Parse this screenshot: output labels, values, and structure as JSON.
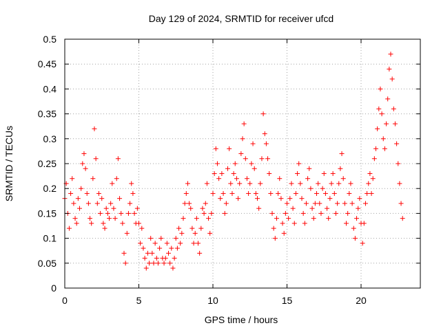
{
  "chart_data": {
    "type": "scatter",
    "title": "Day 129 of 2024, SRMTID for receiver ufcd",
    "xlabel": "GPS time / hours",
    "ylabel": "SRMTID / TECUs",
    "xlim": [
      0,
      24
    ],
    "ylim": [
      0,
      0.5
    ],
    "xticks": [
      0,
      5,
      10,
      15,
      20
    ],
    "yticks": [
      0,
      0.05,
      0.1,
      0.15,
      0.2,
      0.25,
      0.3,
      0.35,
      0.4,
      0.45,
      0.5
    ],
    "xtick_labels": [
      "0",
      "5",
      "10",
      "15",
      "20"
    ],
    "ytick_labels": [
      "0",
      "0.05",
      "0.1",
      "0.15",
      "0.2",
      "0.25",
      "0.3",
      "0.35",
      "0.4",
      "0.45",
      "0.5"
    ],
    "grid": true,
    "marker": "+",
    "color": "#ff0000",
    "series": [
      {
        "x": [
          0.0,
          0.1,
          0.2,
          0.3,
          0.4,
          0.5,
          0.6,
          0.7,
          0.8,
          0.9,
          1.0,
          1.1,
          1.2,
          1.3,
          1.4,
          1.5,
          1.6,
          1.7,
          1.8,
          1.9,
          2.0,
          2.1,
          2.2,
          2.3,
          2.4,
          2.5,
          2.6,
          2.7,
          2.8,
          2.9,
          3.0,
          3.1,
          3.2,
          3.3,
          3.4,
          3.5,
          3.6,
          3.7,
          3.8,
          3.9,
          4.0,
          4.1,
          4.2,
          4.3,
          4.4,
          4.5,
          4.6,
          4.7,
          4.8,
          4.9,
          5.0,
          5.1,
          5.2,
          5.3,
          5.4,
          5.5,
          5.6,
          5.7,
          5.8,
          5.9,
          6.0,
          6.1,
          6.2,
          6.3,
          6.4,
          6.5,
          6.6,
          6.7,
          6.8,
          6.9,
          7.0,
          7.1,
          7.2,
          7.3,
          7.4,
          7.5,
          7.6,
          7.7,
          7.8,
          7.9,
          8.0,
          8.1,
          8.2,
          8.3,
          8.4,
          8.5,
          8.6,
          8.7,
          8.8,
          8.9,
          9.0,
          9.1,
          9.2,
          9.3,
          9.4,
          9.5,
          9.6,
          9.7,
          9.8,
          9.9,
          10.0,
          10.1,
          10.2,
          10.3,
          10.4,
          10.5,
          10.6,
          10.7,
          10.8,
          10.9,
          11.0,
          11.1,
          11.2,
          11.3,
          11.4,
          11.5,
          11.6,
          11.7,
          11.8,
          11.9,
          12.0,
          12.1,
          12.2,
          12.3,
          12.4,
          12.5,
          12.6,
          12.7,
          12.8,
          12.9,
          13.0,
          13.1,
          13.2,
          13.3,
          13.4,
          13.5,
          13.6,
          13.7,
          13.8,
          13.9,
          14.0,
          14.1,
          14.2,
          14.3,
          14.4,
          14.5,
          14.6,
          14.7,
          14.8,
          14.9,
          15.0,
          15.1,
          15.2,
          15.3,
          15.4,
          15.5,
          15.6,
          15.7,
          15.8,
          15.9,
          16.0,
          16.1,
          16.2,
          16.3,
          16.4,
          16.5,
          16.6,
          16.7,
          16.8,
          16.9,
          17.0,
          17.1,
          17.2,
          17.3,
          17.4,
          17.5,
          17.6,
          17.7,
          17.8,
          17.9,
          18.0,
          18.1,
          18.2,
          18.3,
          18.4,
          18.5,
          18.6,
          18.7,
          18.8,
          18.9,
          19.0,
          19.1,
          19.2,
          19.3,
          19.4,
          19.5,
          19.6,
          19.7,
          19.8,
          19.9,
          20.0,
          20.1,
          20.2,
          20.3,
          20.4,
          20.5,
          20.6,
          20.7,
          20.8,
          20.9,
          21.0,
          21.1,
          21.2,
          21.3,
          21.4,
          21.5,
          21.6,
          21.7,
          21.8,
          21.9,
          22.0,
          22.1,
          22.2,
          22.3,
          22.4,
          22.5,
          22.6,
          22.7,
          22.8
        ],
        "y": [
          0.18,
          0.21,
          0.15,
          0.12,
          0.19,
          0.22,
          0.17,
          0.14,
          0.13,
          0.18,
          0.16,
          0.2,
          0.25,
          0.27,
          0.24,
          0.19,
          0.17,
          0.14,
          0.13,
          0.22,
          0.32,
          0.26,
          0.17,
          0.19,
          0.15,
          0.18,
          0.13,
          0.12,
          0.16,
          0.15,
          0.14,
          0.17,
          0.21,
          0.16,
          0.14,
          0.22,
          0.26,
          0.18,
          0.15,
          0.13,
          0.07,
          0.05,
          0.11,
          0.15,
          0.17,
          0.21,
          0.19,
          0.15,
          0.13,
          0.16,
          0.13,
          0.09,
          0.12,
          0.08,
          0.06,
          0.04,
          0.07,
          0.05,
          0.1,
          0.07,
          0.05,
          0.09,
          0.06,
          0.05,
          0.08,
          0.1,
          0.06,
          0.05,
          0.06,
          0.09,
          0.07,
          0.05,
          0.08,
          0.04,
          0.06,
          0.1,
          0.08,
          0.12,
          0.09,
          0.11,
          0.14,
          0.17,
          0.19,
          0.21,
          0.17,
          0.16,
          0.12,
          0.09,
          0.11,
          0.14,
          0.09,
          0.07,
          0.12,
          0.16,
          0.15,
          0.17,
          0.21,
          0.14,
          0.11,
          0.15,
          0.19,
          0.23,
          0.28,
          0.25,
          0.22,
          0.18,
          0.23,
          0.19,
          0.15,
          0.17,
          0.24,
          0.28,
          0.21,
          0.19,
          0.23,
          0.25,
          0.22,
          0.18,
          0.21,
          0.27,
          0.3,
          0.33,
          0.26,
          0.22,
          0.19,
          0.21,
          0.25,
          0.29,
          0.24,
          0.19,
          0.18,
          0.16,
          0.21,
          0.26,
          0.35,
          0.31,
          0.29,
          0.26,
          0.23,
          0.19,
          0.15,
          0.12,
          0.1,
          0.14,
          0.19,
          0.22,
          0.18,
          0.13,
          0.11,
          0.15,
          0.17,
          0.14,
          0.18,
          0.21,
          0.16,
          0.13,
          0.19,
          0.23,
          0.25,
          0.21,
          0.18,
          0.15,
          0.13,
          0.17,
          0.22,
          0.24,
          0.2,
          0.16,
          0.14,
          0.17,
          0.19,
          0.21,
          0.17,
          0.15,
          0.2,
          0.23,
          0.19,
          0.16,
          0.14,
          0.18,
          0.21,
          0.23,
          0.19,
          0.15,
          0.17,
          0.21,
          0.24,
          0.27,
          0.22,
          0.17,
          0.13,
          0.15,
          0.19,
          0.21,
          0.17,
          0.12,
          0.1,
          0.14,
          0.16,
          0.18,
          0.13,
          0.09,
          0.13,
          0.17,
          0.19,
          0.21,
          0.23,
          0.19,
          0.22,
          0.26,
          0.28,
          0.32,
          0.36,
          0.4,
          0.35,
          0.3,
          0.28,
          0.33,
          0.38,
          0.44,
          0.47,
          0.42,
          0.36,
          0.33,
          0.29,
          0.25,
          0.21,
          0.17,
          0.14
        ]
      }
    ]
  }
}
